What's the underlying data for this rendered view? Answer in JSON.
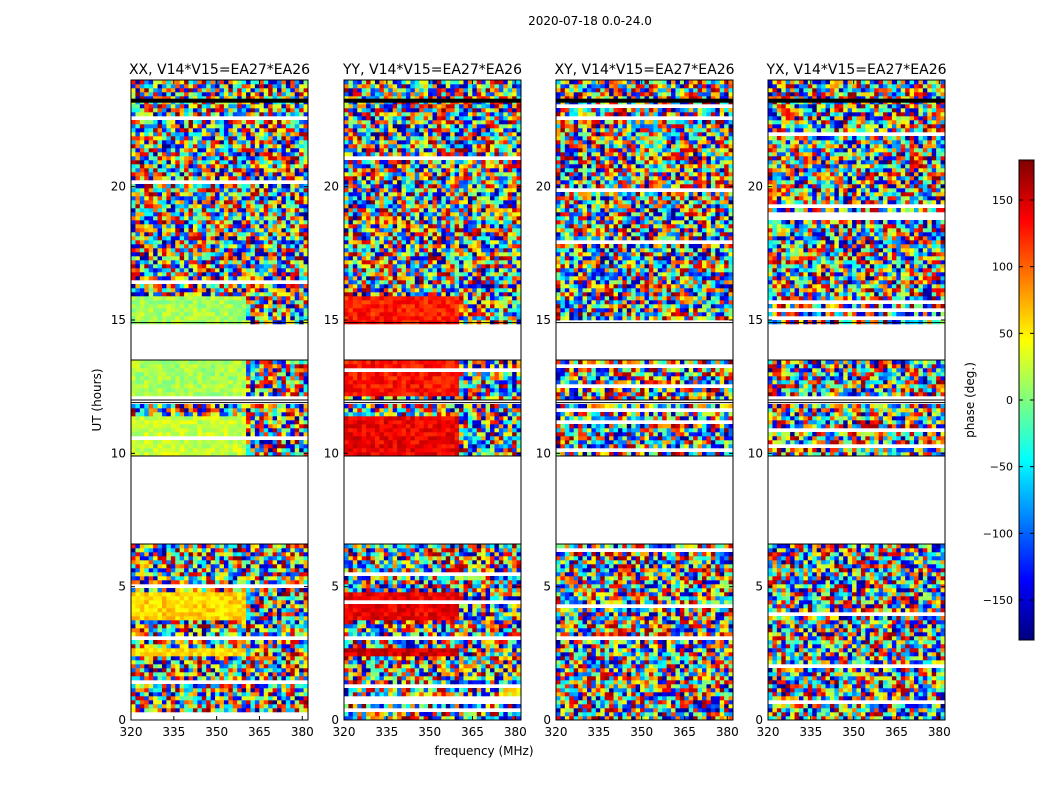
{
  "figure": {
    "suptitle": "2020-07-18 0.0-24.0",
    "ylabel": "UT (hours)",
    "xlabel": "frequency (MHz)",
    "colorbar_label": "phase (deg.)"
  },
  "chart_data": [
    {
      "type": "heatmap",
      "title": "XX, V14*V15=EA27*EA26",
      "xlim": [
        320,
        382
      ],
      "ylim": [
        0,
        24
      ],
      "xticks": [
        320,
        335,
        350,
        365,
        380
      ],
      "yticks": [
        0,
        5,
        10,
        15,
        20
      ],
      "xlabel": "",
      "ylabel": "UT (hours)",
      "grid": false,
      "data_gaps_hours": [
        [
          6.6,
          9.9
        ],
        [
          11.9,
          12.0
        ],
        [
          13.5,
          14.9
        ]
      ],
      "low_rfi_region_mhz": [
        320,
        360
      ],
      "coherent_phase_bands": [
        {
          "ut_range": [
            14.9,
            15.9
          ],
          "freq_range": [
            320,
            360
          ],
          "phase_deg": 15
        },
        {
          "ut_range": [
            12.1,
            13.5
          ],
          "freq_range": [
            320,
            360
          ],
          "phase_deg": 15
        },
        {
          "ut_range": [
            9.9,
            11.4
          ],
          "freq_range": [
            320,
            360
          ],
          "phase_deg": 25
        },
        {
          "ut_range": [
            2.4,
            2.7
          ],
          "freq_range": [
            320,
            360
          ],
          "phase_deg": 55
        },
        {
          "ut_range": [
            3.8,
            4.8
          ],
          "freq_range": [
            320,
            360
          ],
          "phase_deg": 60
        }
      ]
    },
    {
      "type": "heatmap",
      "title": "YY, V14*V15=EA27*EA26",
      "xlim": [
        320,
        382
      ],
      "ylim": [
        0,
        24
      ],
      "xticks": [
        320,
        335,
        350,
        365,
        380
      ],
      "yticks": [
        0,
        5,
        10,
        15,
        20
      ],
      "xlabel": "frequency (MHz)",
      "ylabel": "",
      "grid": false,
      "data_gaps_hours": [
        [
          6.6,
          9.9
        ],
        [
          11.9,
          12.0
        ],
        [
          13.5,
          14.9
        ]
      ],
      "low_rfi_region_mhz": [
        320,
        360
      ],
      "coherent_phase_bands": [
        {
          "ut_range": [
            14.9,
            15.9
          ],
          "freq_range": [
            320,
            360
          ],
          "phase_deg": 125
        },
        {
          "ut_range": [
            12.1,
            13.5
          ],
          "freq_range": [
            320,
            360
          ],
          "phase_deg": 130
        },
        {
          "ut_range": [
            9.9,
            11.4
          ],
          "freq_range": [
            320,
            360
          ],
          "phase_deg": 140
        },
        {
          "ut_range": [
            2.4,
            2.7
          ],
          "freq_range": [
            320,
            360
          ],
          "phase_deg": 150
        },
        {
          "ut_range": [
            3.8,
            4.8
          ],
          "freq_range": [
            320,
            360
          ],
          "phase_deg": 140
        }
      ]
    },
    {
      "type": "heatmap",
      "title": "XY, V14*V15=EA27*EA26",
      "xlim": [
        320,
        382
      ],
      "ylim": [
        0,
        24
      ],
      "xticks": [
        320,
        335,
        350,
        365,
        380
      ],
      "yticks": [
        0,
        5,
        10,
        15,
        20
      ],
      "xlabel": "",
      "ylabel": "",
      "grid": false,
      "data_gaps_hours": [
        [
          6.6,
          9.9
        ],
        [
          11.9,
          12.0
        ],
        [
          13.5,
          14.9
        ]
      ],
      "low_rfi_region_mhz": [
        320,
        360
      ],
      "coherent_phase_bands": []
    },
    {
      "type": "heatmap",
      "title": "YX, V14*V15=EA27*EA26",
      "xlim": [
        320,
        382
      ],
      "ylim": [
        0,
        24
      ],
      "xticks": [
        320,
        335,
        350,
        365,
        380
      ],
      "yticks": [
        0,
        5,
        10,
        15,
        20
      ],
      "xlabel": "",
      "ylabel": "",
      "grid": false,
      "data_gaps_hours": [
        [
          6.6,
          9.9
        ],
        [
          11.9,
          12.0
        ],
        [
          13.5,
          14.9
        ]
      ],
      "low_rfi_region_mhz": [
        320,
        360
      ],
      "coherent_phase_bands": []
    }
  ],
  "colorbar": {
    "range": [
      -180,
      180
    ],
    "ticks": [
      -150,
      -100,
      -50,
      0,
      50,
      100,
      150
    ],
    "tick_labels": [
      "−150",
      "−100",
      "−50",
      "0",
      "50",
      "100",
      "150"
    ],
    "colormap": "jet",
    "colors": [
      "#00007f",
      "#0000ff",
      "#007fff",
      "#00ffff",
      "#7fff7f",
      "#ffff00",
      "#ff7f00",
      "#ff0000",
      "#7f0000"
    ]
  }
}
